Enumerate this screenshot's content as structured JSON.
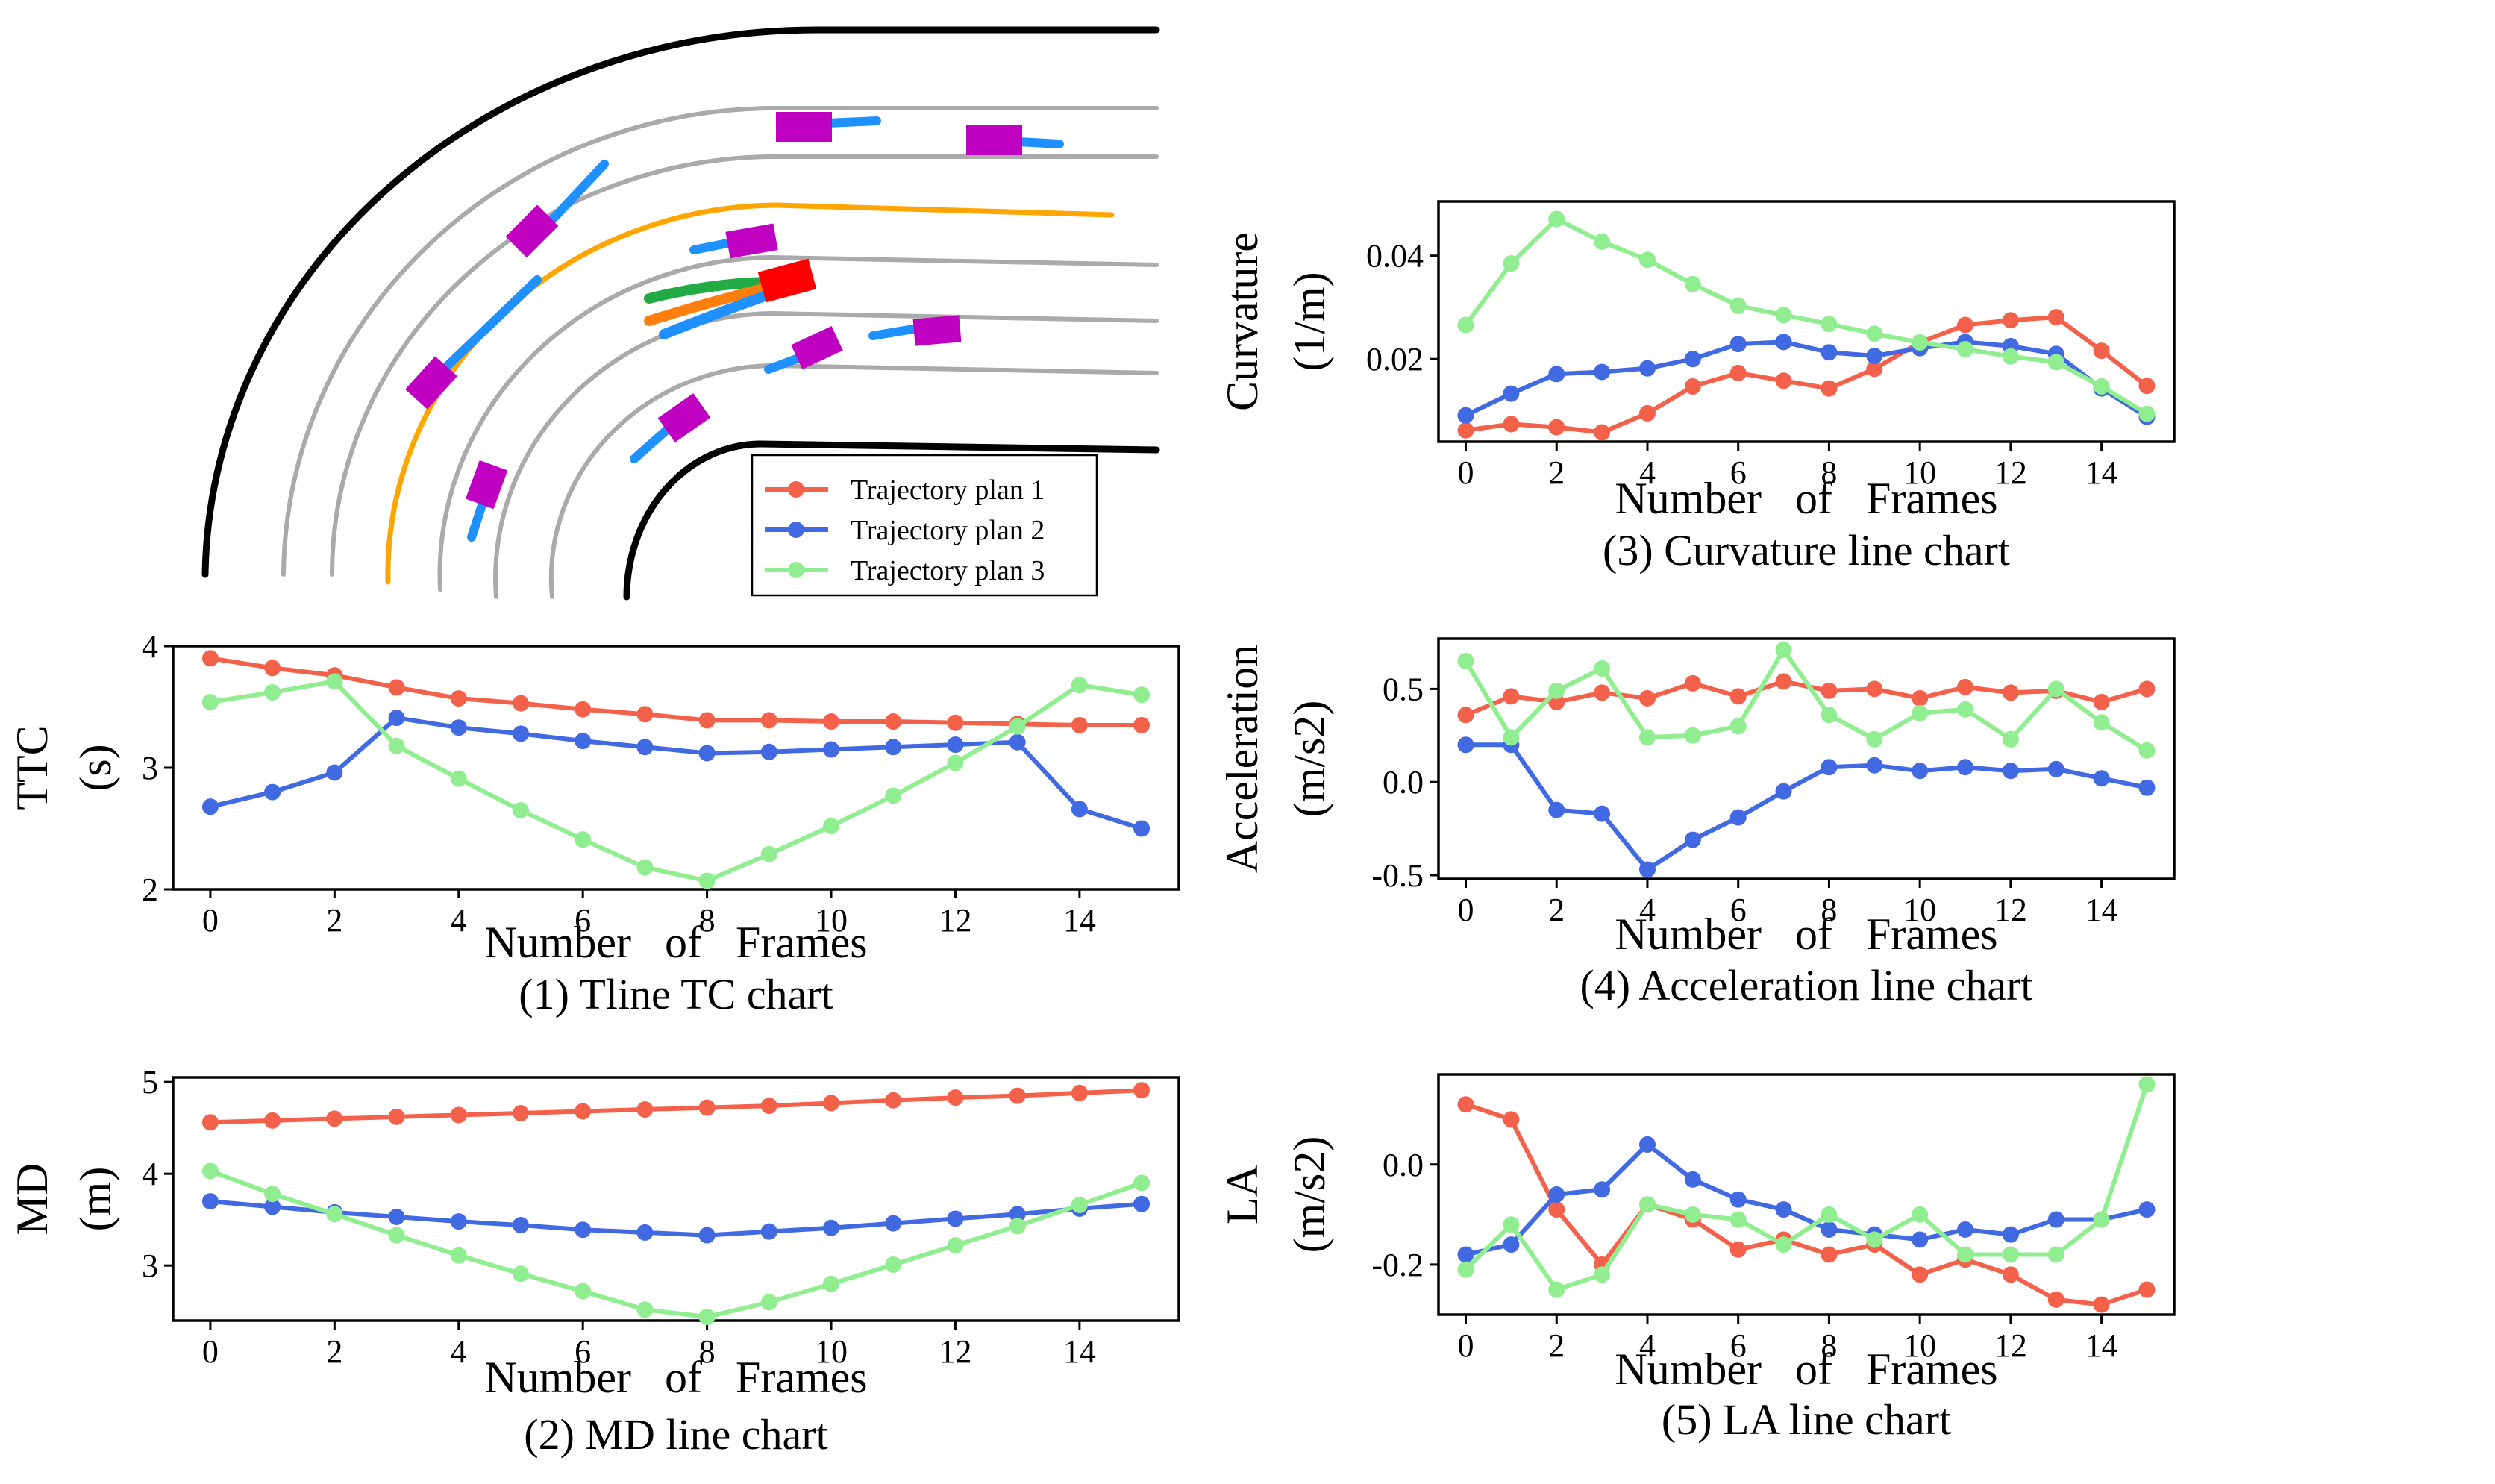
{
  "colors": {
    "plan1": "#f4614a",
    "plan2": "#4169e1",
    "plan3": "#90ee90",
    "obstacle_vehicle": "#c000c0",
    "ego_vehicle": "#ff0000",
    "reference_line": "#ffa500",
    "lane_line": "#aaaaaa",
    "road_edge": "#000000"
  },
  "legend": {
    "entries": [
      "Trajectory plan 1",
      "Trajectory plan 2",
      "Trajectory plan 3"
    ]
  },
  "scene": {
    "description_icon": "curved-road-scene"
  },
  "chart_data": [
    {
      "id": "ttc",
      "type": "line",
      "caption": "(1) Tline TC chart",
      "xlabel": "Number   of   Frames",
      "ylabel_lines": [
        "TTC",
        "(s)"
      ],
      "x": [
        0,
        1,
        2,
        3,
        4,
        5,
        6,
        7,
        8,
        9,
        10,
        11,
        12,
        13,
        14,
        15
      ],
      "xlim": [
        -0.6,
        15.6
      ],
      "ylim": [
        2.0,
        4.0
      ],
      "xticks": [
        0,
        2,
        4,
        6,
        8,
        10,
        12,
        14
      ],
      "yticks": [
        2,
        3,
        4
      ],
      "yticklabels": [
        "2",
        "3",
        "4"
      ],
      "series": [
        {
          "name": "Trajectory plan 1",
          "values": [
            3.9,
            3.82,
            3.76,
            3.66,
            3.57,
            3.53,
            3.48,
            3.44,
            3.39,
            3.39,
            3.38,
            3.38,
            3.37,
            3.36,
            3.35,
            3.35
          ]
        },
        {
          "name": "Trajectory plan 2",
          "values": [
            2.68,
            2.8,
            2.96,
            3.41,
            3.33,
            3.28,
            3.22,
            3.17,
            3.12,
            3.13,
            3.15,
            3.17,
            3.19,
            3.21,
            2.66,
            2.5
          ]
        },
        {
          "name": "Trajectory plan 3",
          "values": [
            3.54,
            3.62,
            3.71,
            3.18,
            2.91,
            2.65,
            2.41,
            2.18,
            2.07,
            2.29,
            2.52,
            2.77,
            3.04,
            3.34,
            3.68,
            3.6
          ]
        }
      ]
    },
    {
      "id": "md",
      "type": "line",
      "caption": "(2) MD line chart",
      "xlabel": "Number   of   Frames",
      "ylabel_lines": [
        "MD",
        "(m)"
      ],
      "x": [
        0,
        1,
        2,
        3,
        4,
        5,
        6,
        7,
        8,
        9,
        10,
        11,
        12,
        13,
        14,
        15
      ],
      "xlim": [
        -0.6,
        15.6
      ],
      "ylim": [
        2.4,
        5.05
      ],
      "xticks": [
        0,
        2,
        4,
        6,
        8,
        10,
        12,
        14
      ],
      "yticks": [
        3,
        4,
        5
      ],
      "yticklabels": [
        "3",
        "4",
        "5"
      ],
      "series": [
        {
          "name": "Trajectory plan 1",
          "values": [
            4.56,
            4.58,
            4.6,
            4.62,
            4.64,
            4.66,
            4.68,
            4.7,
            4.72,
            4.74,
            4.77,
            4.8,
            4.83,
            4.85,
            4.88,
            4.91
          ]
        },
        {
          "name": "Trajectory plan 2",
          "values": [
            3.7,
            3.64,
            3.58,
            3.53,
            3.48,
            3.44,
            3.39,
            3.36,
            3.33,
            3.37,
            3.41,
            3.46,
            3.51,
            3.56,
            3.62,
            3.67
          ]
        },
        {
          "name": "Trajectory plan 3",
          "values": [
            4.03,
            3.78,
            3.56,
            3.33,
            3.11,
            2.91,
            2.72,
            2.52,
            2.44,
            2.6,
            2.8,
            3.01,
            3.22,
            3.43,
            3.66,
            3.9
          ]
        }
      ]
    },
    {
      "id": "curvature",
      "type": "line",
      "caption": "(3) Curvature line chart",
      "xlabel": "Number   of   Frames",
      "ylabel_lines": [
        "Curvature",
        "(1/m)"
      ],
      "x": [
        0,
        1,
        2,
        3,
        4,
        5,
        6,
        7,
        8,
        9,
        10,
        11,
        12,
        13,
        14,
        15
      ],
      "xlim": [
        -0.6,
        15.6
      ],
      "ylim": [
        0.004,
        0.0505
      ],
      "xticks": [
        0,
        2,
        4,
        6,
        8,
        10,
        12,
        14
      ],
      "yticks": [
        0.02,
        0.04
      ],
      "yticklabels": [
        "0.02",
        "0.04"
      ],
      "series": [
        {
          "name": "Trajectory plan 1",
          "values": [
            0.0062,
            0.0074,
            0.0068,
            0.0058,
            0.0095,
            0.0147,
            0.0173,
            0.0158,
            0.0143,
            0.0181,
            0.0232,
            0.0266,
            0.0275,
            0.0281,
            0.0216,
            0.0148
          ]
        },
        {
          "name": "Trajectory plan 2",
          "values": [
            0.0091,
            0.0133,
            0.0171,
            0.0175,
            0.0182,
            0.02,
            0.0229,
            0.0233,
            0.0213,
            0.0206,
            0.0221,
            0.0233,
            0.0225,
            0.021,
            0.0143,
            0.0088
          ]
        },
        {
          "name": "Trajectory plan 3",
          "values": [
            0.0266,
            0.0385,
            0.0471,
            0.0427,
            0.0392,
            0.0345,
            0.0303,
            0.0285,
            0.0268,
            0.0249,
            0.0232,
            0.0219,
            0.0205,
            0.0194,
            0.0147,
            0.0094
          ]
        }
      ]
    },
    {
      "id": "acceleration",
      "type": "line",
      "caption": "(4) Acceleration line chart",
      "xlabel": "Number   of   Frames",
      "ylabel_lines": [
        "Acceleration",
        "(m/s2)"
      ],
      "x": [
        0,
        1,
        2,
        3,
        4,
        5,
        6,
        7,
        8,
        9,
        10,
        11,
        12,
        13,
        14,
        15
      ],
      "xlim": [
        -0.6,
        15.6
      ],
      "ylim": [
        -0.52,
        0.77
      ],
      "xticks": [
        0,
        2,
        4,
        6,
        8,
        10,
        12,
        14
      ],
      "yticks": [
        -0.5,
        0.0,
        0.5
      ],
      "yticklabels": [
        "-0.5",
        "0.0",
        "0.5"
      ],
      "series": [
        {
          "name": "Trajectory plan 1",
          "values": [
            0.36,
            0.46,
            0.43,
            0.48,
            0.45,
            0.53,
            0.46,
            0.54,
            0.49,
            0.5,
            0.45,
            0.51,
            0.48,
            0.49,
            0.43,
            0.5
          ]
        },
        {
          "name": "Trajectory plan 2",
          "values": [
            0.2,
            0.2,
            -0.15,
            -0.17,
            -0.47,
            -0.31,
            -0.19,
            -0.05,
            0.08,
            0.09,
            0.06,
            0.08,
            0.06,
            0.07,
            0.02,
            -0.03
          ]
        },
        {
          "name": "Trajectory plan 3",
          "values": [
            0.65,
            0.24,
            0.49,
            0.61,
            0.24,
            0.25,
            0.3,
            0.71,
            0.36,
            0.23,
            0.37,
            0.39,
            0.23,
            0.5,
            0.32,
            0.17
          ]
        }
      ]
    },
    {
      "id": "la",
      "type": "line",
      "caption": "(5) LA line chart",
      "xlabel": "Number   of   Frames",
      "ylabel_lines": [
        "LA",
        "(m/s2)"
      ],
      "x": [
        0,
        1,
        2,
        3,
        4,
        5,
        6,
        7,
        8,
        9,
        10,
        11,
        12,
        13,
        14,
        15
      ],
      "xlim": [
        -0.6,
        15.6
      ],
      "ylim": [
        -0.3,
        0.18
      ],
      "xticks": [
        0,
        2,
        4,
        6,
        8,
        10,
        12,
        14
      ],
      "yticks": [
        -0.2,
        0.0
      ],
      "yticklabels": [
        "-0.2",
        "0.0"
      ],
      "series": [
        {
          "name": "Trajectory plan 1",
          "values": [
            0.12,
            0.09,
            -0.09,
            -0.2,
            -0.08,
            -0.11,
            -0.17,
            -0.15,
            -0.18,
            -0.16,
            -0.22,
            -0.19,
            -0.22,
            -0.27,
            -0.28,
            -0.25
          ]
        },
        {
          "name": "Trajectory plan 2",
          "values": [
            -0.18,
            -0.16,
            -0.06,
            -0.05,
            0.04,
            -0.03,
            -0.07,
            -0.09,
            -0.13,
            -0.14,
            -0.15,
            -0.13,
            -0.14,
            -0.11,
            -0.11,
            -0.09
          ]
        },
        {
          "name": "Trajectory plan 3",
          "values": [
            -0.21,
            -0.12,
            -0.25,
            -0.22,
            -0.08,
            -0.1,
            -0.11,
            -0.16,
            -0.1,
            -0.15,
            -0.1,
            -0.18,
            -0.18,
            -0.18,
            -0.11,
            0.16
          ]
        }
      ]
    }
  ]
}
